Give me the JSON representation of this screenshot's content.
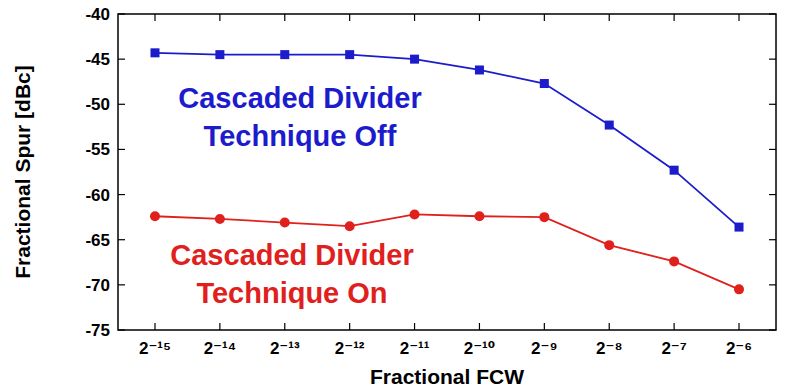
{
  "chart_data": {
    "type": "line",
    "x_label": "Fractional FCW",
    "y_label": "Fractional Spur [dBc]",
    "categories": [
      "2⁻¹⁵",
      "2⁻¹⁴",
      "2⁻¹³",
      "2⁻¹²",
      "2⁻¹¹",
      "2⁻¹⁰",
      "2⁻⁹",
      "2⁻⁸",
      "2⁻⁷",
      "2⁻⁶"
    ],
    "series": [
      {
        "name": "Cascaded Divider Technique Off",
        "color": "#1c1ccc",
        "marker": "square",
        "values": [
          -44.3,
          -44.5,
          -44.5,
          -44.5,
          -45.0,
          -46.2,
          -47.7,
          -52.3,
          -57.3,
          -63.6
        ]
      },
      {
        "name": "Cascaded Divider Technique On",
        "color": "#e0201c",
        "marker": "circle",
        "values": [
          -62.4,
          -62.7,
          -63.1,
          -63.5,
          -62.2,
          -62.4,
          -62.5,
          -65.6,
          -67.4,
          -70.5
        ]
      }
    ],
    "ylim": [
      -75,
      -40
    ],
    "yticks": [
      -75,
      -70,
      -65,
      -60,
      -55,
      -50,
      -45,
      -40
    ],
    "grid": false
  }
}
